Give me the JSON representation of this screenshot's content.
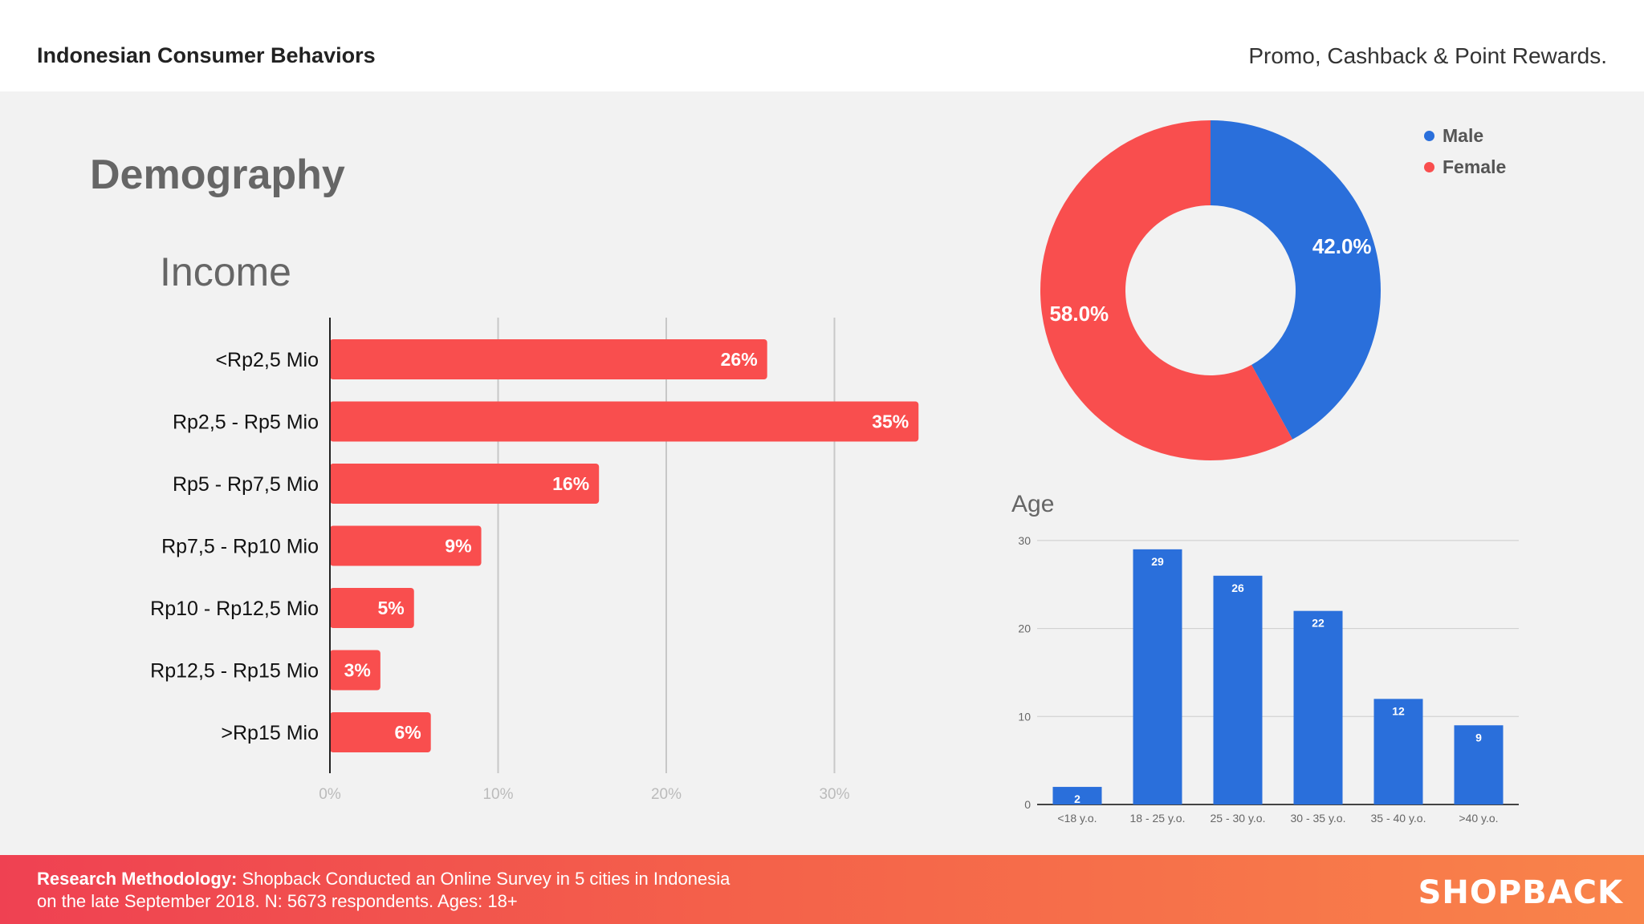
{
  "header": {
    "title": "Indonesian Consumer Behaviors",
    "subtitle": "Promo, Cashback & Point Rewards."
  },
  "section_title": "Demography",
  "colors": {
    "red": "#f94e4e",
    "blue": "#2a6fdb"
  },
  "gender_legend": [
    {
      "label": "Male",
      "color": "#2a6fdb"
    },
    {
      "label": "Female",
      "color": "#f94e4e"
    }
  ],
  "footer": {
    "methodology_label": "Research Methodology:",
    "methodology_text": " Shopback Conducted an Online Survey in 5 cities in Indonesia",
    "line2": "on the late September 2018. N: 5673 respondents. Ages: 18+",
    "brand": "SHOPBACK"
  },
  "chart_data": [
    {
      "type": "bar",
      "orientation": "horizontal",
      "title": "Income",
      "categories": [
        "<Rp2,5 Mio",
        "Rp2,5 - Rp5 Mio",
        "Rp5 - Rp7,5 Mio",
        "Rp7,5 - Rp10 Mio",
        "Rp10 - Rp12,5 Mio",
        "Rp12,5 - Rp15 Mio",
        ">Rp15 Mio"
      ],
      "values": [
        26,
        35,
        16,
        9,
        5,
        3,
        6
      ],
      "data_labels": [
        "26%",
        "35%",
        "16%",
        "9%",
        "5%",
        "3%",
        "6%"
      ],
      "xlim": [
        0,
        35
      ],
      "xticks": [
        0,
        10,
        20,
        30
      ],
      "xtick_labels": [
        "0%",
        "10%",
        "20%",
        "30%"
      ],
      "grid": true,
      "color": "#f94e4e"
    },
    {
      "type": "pie",
      "donut": true,
      "labels": [
        "Male",
        "Female"
      ],
      "values": [
        42.0,
        58.0
      ],
      "data_labels": [
        "42.0%",
        "58.0%"
      ],
      "colors": [
        "#2a6fdb",
        "#f94e4e"
      ],
      "legend": "top-right"
    },
    {
      "type": "bar",
      "orientation": "vertical",
      "title": "Age",
      "categories": [
        "<18 y.o.",
        "18 - 25 y.o.",
        "25 - 30 y.o.",
        "30 - 35 y.o.",
        "35 - 40 y.o.",
        ">40 y.o."
      ],
      "values": [
        2,
        29,
        26,
        22,
        12,
        9
      ],
      "data_labels": [
        "2",
        "29",
        "26",
        "22",
        "12",
        "9"
      ],
      "ylim": [
        0,
        30
      ],
      "yticks": [
        0,
        10,
        20,
        30
      ],
      "ytick_labels": [
        "0",
        "10",
        "20",
        "30"
      ],
      "grid": true,
      "color": "#2a6fdb"
    }
  ]
}
